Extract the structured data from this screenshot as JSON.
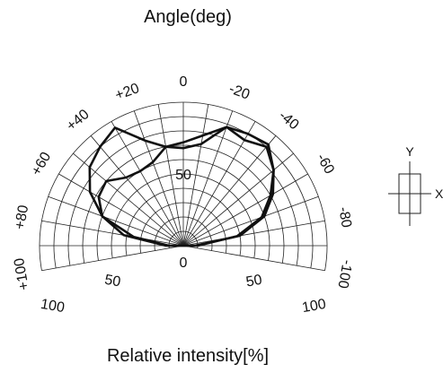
{
  "chart_data": {
    "type": "polar",
    "title": "Angle(deg)",
    "xlabel": "Relative intensity[%]",
    "angle_range": [
      -100,
      100
    ],
    "radial_range": [
      0,
      100
    ],
    "angle_tick_labels": [
      "0",
      "-20",
      "-40",
      "-60",
      "-80",
      "-100",
      "+20",
      "+40",
      "+60",
      "+80",
      "+100"
    ],
    "radial_tick_labels": [
      "0",
      "50",
      "100"
    ],
    "grid": true,
    "series": [
      {
        "angles": [
          -100,
          -90,
          -80,
          -70,
          -60,
          -50,
          -40,
          -30,
          -20,
          -10,
          0,
          10,
          20,
          30,
          40,
          50,
          60,
          70,
          80,
          90,
          100
        ],
        "values": [
          0,
          8,
          40,
          60,
          72,
          82,
          90,
          85,
          88,
          72,
          68,
          70,
          78,
          95,
          90,
          85,
          75,
          60,
          35,
          10,
          0
        ]
      },
      {
        "angles": [
          -100,
          -90,
          -80,
          -70,
          -60,
          -50,
          -40,
          -30,
          -20,
          -10,
          0,
          10,
          20,
          30,
          40,
          50,
          60,
          70,
          80,
          90,
          100
        ],
        "values": [
          0,
          10,
          38,
          58,
          70,
          82,
          92,
          90,
          88,
          78,
          72,
          70,
          62,
          60,
          62,
          70,
          68,
          60,
          42,
          12,
          0
        ]
      }
    ]
  },
  "legend_diagram": {
    "y_label": "Y",
    "x_label": "X"
  }
}
